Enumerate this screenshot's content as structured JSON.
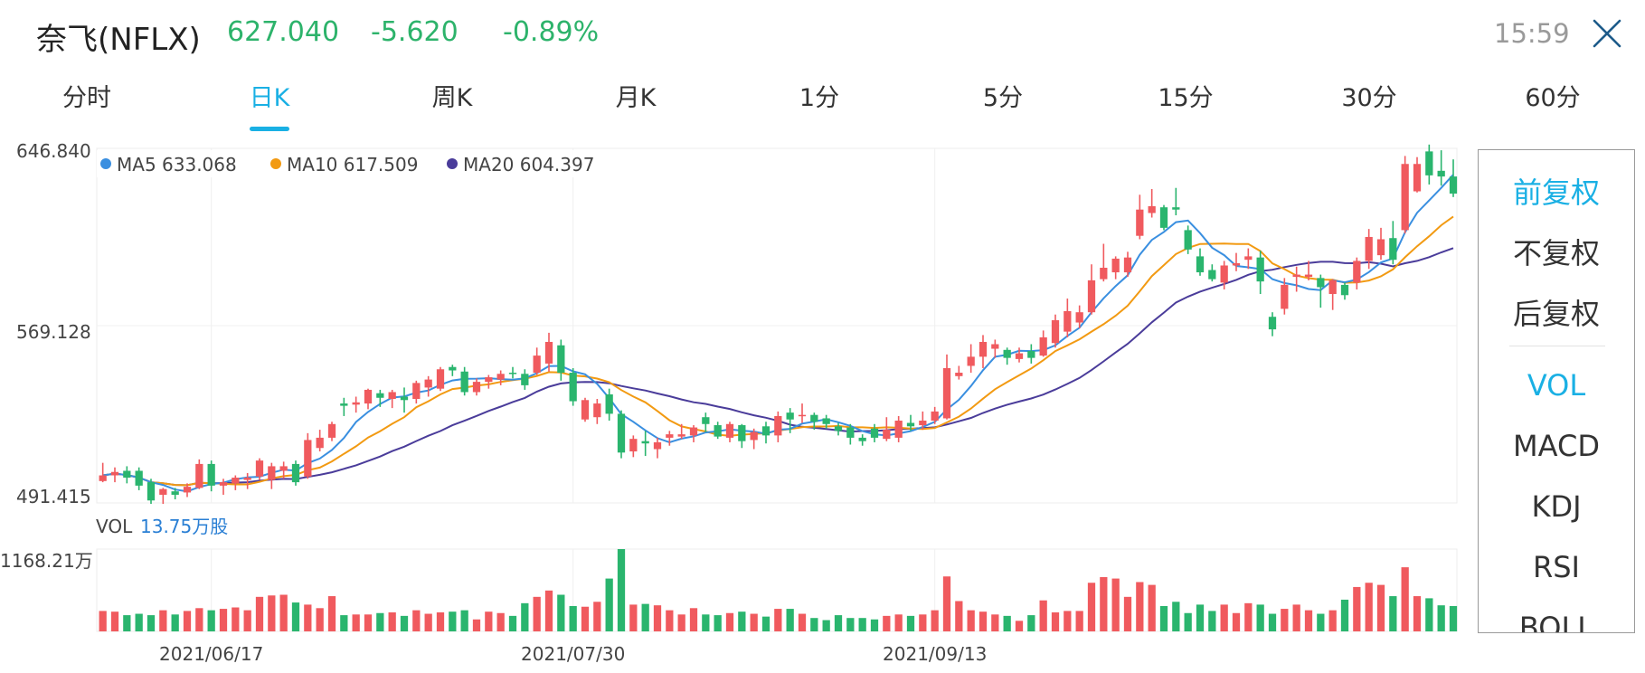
{
  "header": {
    "stock_name": "奈飞(NFLX)",
    "price": "627.040",
    "change": "-5.620",
    "change_pct": "-0.89%",
    "time": "15:59"
  },
  "tabs": [
    {
      "label": "分时",
      "active": false
    },
    {
      "label": "日K",
      "active": true
    },
    {
      "label": "周K",
      "active": false
    },
    {
      "label": "月K",
      "active": false
    },
    {
      "label": "1分",
      "active": false
    },
    {
      "label": "5分",
      "active": false
    },
    {
      "label": "15分",
      "active": false
    },
    {
      "label": "30分",
      "active": false
    },
    {
      "label": "60分",
      "active": false
    }
  ],
  "side_menu": {
    "adjust": [
      {
        "label": "前复权",
        "active": true
      },
      {
        "label": "不复权",
        "active": false
      },
      {
        "label": "后复权",
        "active": false
      }
    ],
    "indicators": [
      {
        "label": "VOL",
        "active": true
      },
      {
        "label": "MACD",
        "active": false
      },
      {
        "label": "KDJ",
        "active": false
      },
      {
        "label": "RSI",
        "active": false
      },
      {
        "label": "BOLL",
        "active": false
      }
    ]
  },
  "colors": {
    "up": "#f05a5e",
    "down": "#2ab56e",
    "ma5": "#3a8fe0",
    "ma10": "#f29a12",
    "ma20": "#4a3c9a",
    "accent": "#1ab0e4"
  },
  "chart_data": {
    "type": "candlestick",
    "y_ticks": [
      "646.840",
      "569.128",
      "491.415"
    ],
    "ylim": [
      491.415,
      646.84
    ],
    "x_tick_labels": [
      {
        "label": "2021/06/17",
        "index": 9
      },
      {
        "label": "2021/07/30",
        "index": 39
      },
      {
        "label": "2021/09/13",
        "index": 69
      }
    ],
    "legend": [
      {
        "name": "MA5",
        "value": "633.068"
      },
      {
        "name": "MA10",
        "value": "617.509"
      },
      {
        "name": "MA20",
        "value": "604.397"
      }
    ],
    "volume_label": "VOL",
    "volume_value": "13.75万股",
    "volume_max_label": "1168.21万",
    "volume_max": 1168.21,
    "candles": [
      [
        501.0,
        503.5,
        509.0,
        500.5,
        290
      ],
      [
        503.5,
        505.0,
        507.0,
        500.5,
        280
      ],
      [
        505.5,
        502.5,
        507.5,
        500.0,
        230
      ],
      [
        505.5,
        499.0,
        507.0,
        497.0,
        250
      ],
      [
        500.5,
        492.5,
        502.0,
        491.0,
        230
      ],
      [
        495.0,
        497.5,
        498.0,
        491.0,
        300
      ],
      [
        496.5,
        495.0,
        498.0,
        493.0,
        240
      ],
      [
        496.0,
        498.5,
        500.0,
        494.0,
        290
      ],
      [
        498.0,
        508.5,
        510.5,
        497.5,
        330
      ],
      [
        508.5,
        499.0,
        510.0,
        496.5,
        300
      ],
      [
        499.0,
        500.5,
        502.0,
        495.0,
        320
      ],
      [
        500.0,
        502.5,
        503.5,
        497.0,
        340
      ],
      [
        501.5,
        502.5,
        504.5,
        497.5,
        300
      ],
      [
        503.0,
        510.0,
        511.0,
        501.5,
        490
      ],
      [
        501.5,
        507.5,
        509.0,
        497.5,
        510
      ],
      [
        505.5,
        507.5,
        509.5,
        502.0,
        520
      ],
      [
        508.5,
        500.5,
        510.0,
        499.0,
        410
      ],
      [
        503.0,
        519.0,
        522.0,
        502.0,
        380
      ],
      [
        515.5,
        520.0,
        523.5,
        514.0,
        330
      ],
      [
        520.0,
        526.0,
        527.0,
        518.5,
        500
      ],
      [
        535.0,
        534.0,
        537.5,
        529.5,
        230
      ],
      [
        534.5,
        535.5,
        538.0,
        531.0,
        240
      ],
      [
        535.0,
        541.0,
        541.5,
        532.5,
        240
      ],
      [
        539.5,
        537.5,
        541.0,
        533.5,
        260
      ],
      [
        537.0,
        540.0,
        541.0,
        533.0,
        270
      ],
      [
        538.0,
        536.5,
        542.0,
        531.0,
        220
      ],
      [
        537.0,
        544.0,
        545.0,
        535.0,
        300
      ],
      [
        542.0,
        545.5,
        547.0,
        538.0,
        250
      ],
      [
        541.5,
        550.0,
        551.0,
        540.5,
        270
      ],
      [
        551.0,
        549.5,
        552.0,
        547.0,
        280
      ],
      [
        549.0,
        540.0,
        551.0,
        538.5,
        300
      ],
      [
        540.0,
        544.5,
        546.0,
        538.5,
        170
      ],
      [
        544.5,
        546.5,
        547.5,
        541.5,
        280
      ],
      [
        545.5,
        548.0,
        549.5,
        543.0,
        260
      ],
      [
        548.5,
        548.0,
        551.0,
        546.0,
        220
      ],
      [
        548.0,
        543.0,
        550.0,
        541.0,
        400
      ],
      [
        548.5,
        556.0,
        559.5,
        547.5,
        490
      ],
      [
        552.5,
        562.0,
        566.0,
        549.0,
        580
      ],
      [
        560.5,
        548.5,
        563.0,
        545.0,
        520
      ],
      [
        548.5,
        536.0,
        550.5,
        534.0,
        360
      ],
      [
        528.0,
        536.5,
        537.5,
        527.0,
        350
      ],
      [
        529.0,
        535.0,
        537.0,
        526.0,
        420
      ],
      [
        539.0,
        530.5,
        541.5,
        527.5,
        750
      ],
      [
        530.5,
        513.5,
        532.0,
        511.0,
        1168
      ],
      [
        514.0,
        519.5,
        521.0,
        511.5,
        380
      ],
      [
        518.5,
        517.5,
        523.0,
        512.0,
        390
      ],
      [
        515.0,
        518.0,
        520.0,
        511.0,
        370
      ],
      [
        520.0,
        521.5,
        523.0,
        516.5,
        300
      ],
      [
        520.5,
        521.5,
        526.0,
        519.5,
        240
      ],
      [
        521.0,
        524.5,
        525.5,
        518.0,
        330
      ],
      [
        529.0,
        526.0,
        531.0,
        522.5,
        240
      ],
      [
        525.5,
        520.5,
        527.0,
        519.5,
        230
      ],
      [
        520.0,
        526.0,
        527.0,
        518.0,
        260
      ],
      [
        525.5,
        518.5,
        526.0,
        515.5,
        280
      ],
      [
        519.0,
        522.5,
        524.0,
        515.0,
        250
      ],
      [
        525.0,
        521.0,
        527.0,
        517.5,
        210
      ],
      [
        521.0,
        529.5,
        531.5,
        518.0,
        320
      ],
      [
        531.0,
        528.0,
        533.0,
        522.0,
        320
      ],
      [
        529.5,
        530.0,
        535.0,
        526.5,
        250
      ],
      [
        530.0,
        527.0,
        531.0,
        523.5,
        190
      ],
      [
        528.5,
        526.0,
        530.0,
        524.0,
        160
      ],
      [
        525.0,
        523.0,
        526.5,
        521.0,
        230
      ],
      [
        524.5,
        520.0,
        526.0,
        517.0,
        190
      ],
      [
        520.0,
        518.5,
        521.5,
        516.5,
        190
      ],
      [
        524.0,
        520.0,
        526.0,
        518.0,
        170
      ],
      [
        519.5,
        523.5,
        529.0,
        518.5,
        220
      ],
      [
        520.0,
        527.5,
        529.5,
        518.0,
        240
      ],
      [
        526.5,
        525.0,
        530.0,
        523.0,
        220
      ],
      [
        525.5,
        527.5,
        531.5,
        523.5,
        240
      ],
      [
        527.5,
        531.5,
        533.5,
        526.0,
        300
      ],
      [
        528.5,
        550.5,
        556.5,
        528.0,
        780
      ],
      [
        547.0,
        548.5,
        551.5,
        545.5,
        430
      ],
      [
        551.5,
        555.5,
        561.0,
        548.5,
        300
      ],
      [
        555.5,
        562.0,
        565.0,
        550.5,
        280
      ],
      [
        559.0,
        561.0,
        563.0,
        555.0,
        240
      ],
      [
        558.5,
        555.0,
        559.5,
        552.0,
        220
      ],
      [
        554.5,
        557.0,
        559.5,
        553.0,
        150
      ],
      [
        558.0,
        555.0,
        561.0,
        552.5,
        230
      ],
      [
        556.0,
        564.0,
        567.0,
        555.5,
        440
      ],
      [
        561.5,
        571.5,
        574.0,
        559.5,
        270
      ],
      [
        566.5,
        575.5,
        581.0,
        564.0,
        290
      ],
      [
        570.5,
        575.0,
        578.0,
        568.0,
        290
      ],
      [
        575.0,
        589.0,
        596.0,
        574.0,
        690
      ],
      [
        589.5,
        594.5,
        605.0,
        588.5,
        770
      ],
      [
        592.5,
        598.5,
        599.5,
        589.5,
        750
      ],
      [
        592.5,
        599.0,
        601.5,
        590.5,
        490
      ],
      [
        608.5,
        620.0,
        626.5,
        607.0,
        700
      ],
      [
        618.5,
        621.5,
        629.0,
        616.5,
        660
      ],
      [
        621.0,
        612.0,
        622.0,
        611.0,
        360
      ],
      [
        621.0,
        620.0,
        629.5,
        617.5,
        420
      ],
      [
        611.0,
        602.5,
        613.0,
        600.5,
        260
      ],
      [
        599.5,
        592.5,
        603.0,
        591.0,
        380
      ],
      [
        593.5,
        589.5,
        596.0,
        588.5,
        290
      ],
      [
        588.0,
        595.5,
        597.5,
        585.0,
        380
      ],
      [
        595.5,
        596.5,
        601.0,
        593.0,
        260
      ],
      [
        598.0,
        599.5,
        603.0,
        594.0,
        400
      ],
      [
        599.0,
        588.5,
        602.0,
        583.0,
        380
      ],
      [
        573.0,
        567.5,
        575.0,
        564.5,
        250
      ],
      [
        576.5,
        587.0,
        590.0,
        574.0,
        320
      ],
      [
        590.5,
        591.5,
        595.0,
        584.0,
        380
      ],
      [
        590.5,
        591.5,
        597.5,
        589.0,
        300
      ],
      [
        590.0,
        586.0,
        591.5,
        577.0,
        250
      ],
      [
        583.0,
        589.0,
        589.5,
        576.0,
        300
      ],
      [
        587.0,
        582.5,
        588.0,
        580.5,
        450
      ],
      [
        588.0,
        597.5,
        599.0,
        585.0,
        630
      ],
      [
        597.5,
        608.0,
        611.5,
        594.0,
        690
      ],
      [
        600.0,
        607.0,
        612.0,
        598.0,
        660
      ],
      [
        607.5,
        598.0,
        615.0,
        596.0,
        500
      ],
      [
        611.0,
        640.0,
        643.5,
        609.5,
        910
      ],
      [
        628.0,
        640.0,
        643.0,
        627.5,
        500
      ],
      [
        645.5,
        635.0,
        648.5,
        631.0,
        470
      ],
      [
        637.0,
        634.5,
        646.0,
        630.5,
        370
      ],
      [
        634.5,
        627.0,
        642.0,
        625.5,
        360
      ]
    ]
  }
}
